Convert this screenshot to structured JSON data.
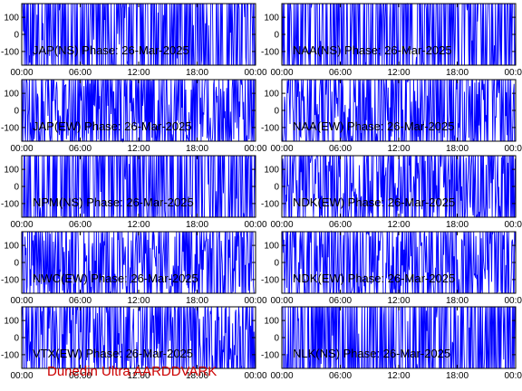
{
  "footer": "Dunedin Ultra AARDDVARK",
  "colors": {
    "trace": "#0000ff",
    "axis": "#000000",
    "footer": "#cc0000",
    "background": "#ffffff"
  },
  "chart_data": [
    {
      "type": "line",
      "title": "JAP(NS) Phase: 26-Mar-2025",
      "xlim": [
        "00:00",
        "24:00"
      ],
      "x_ticks": [
        "00:00",
        "06:00",
        "12:00",
        "18:00",
        "00:00"
      ],
      "ylim": [
        -180,
        180
      ],
      "y_ticks": [
        100,
        0,
        -100
      ],
      "series": [
        {
          "values_range": [
            -180,
            180
          ],
          "density": 0.92
        }
      ]
    },
    {
      "type": "line",
      "title": "NAA(NS) Phase: 26-Mar-2025",
      "xlim": [
        "00:00",
        "24:00"
      ],
      "x_ticks": [
        "00:00",
        "06:00",
        "12:00",
        "18:00",
        "00:00"
      ],
      "ylim": [
        -180,
        180
      ],
      "y_ticks": [
        100,
        0,
        -100
      ],
      "series": [
        {
          "values_range": [
            -180,
            180
          ],
          "density": 0.92
        }
      ]
    },
    {
      "type": "line",
      "title": "JAP(EW) Phase: 26-Mar-2025",
      "xlim": [
        "00:00",
        "24:00"
      ],
      "x_ticks": [
        "00:00",
        "06:00",
        "12:00",
        "18:00",
        "00:00"
      ],
      "ylim": [
        -180,
        180
      ],
      "y_ticks": [
        100,
        0,
        -100
      ],
      "series": [
        {
          "values_range": [
            -180,
            180
          ],
          "density": 0.6
        }
      ]
    },
    {
      "type": "line",
      "title": "NAA(EW) Phase: 26-Mar-2025",
      "xlim": [
        "00:00",
        "24:00"
      ],
      "x_ticks": [
        "00:00",
        "06:00",
        "12:00",
        "18:00",
        "00:00"
      ],
      "ylim": [
        -180,
        180
      ],
      "y_ticks": [
        100,
        0,
        -100
      ],
      "series": [
        {
          "values_range": [
            -180,
            180
          ],
          "density": 0.6
        }
      ]
    },
    {
      "type": "line",
      "title": "NPM(NS) Phase: 26-Mar-2025",
      "xlim": [
        "00:00",
        "24:00"
      ],
      "x_ticks": [
        "00:00",
        "06:00",
        "12:00",
        "18:00",
        "00:00"
      ],
      "ylim": [
        -180,
        180
      ],
      "y_ticks": [
        100,
        0,
        -100
      ],
      "series": [
        {
          "values_range": [
            -180,
            180
          ],
          "density": 0.92
        }
      ]
    },
    {
      "type": "line",
      "title": "NDK(EW) Phase: 26-Mar-2025",
      "xlim": [
        "00:00",
        "24:00"
      ],
      "x_ticks": [
        "00:00",
        "06:00",
        "12:00",
        "18:00",
        "00:00"
      ],
      "ylim": [
        -180,
        180
      ],
      "y_ticks": [
        100,
        0,
        -100
      ],
      "series": [
        {
          "values_range": [
            -180,
            180
          ],
          "density": 0.6
        }
      ]
    },
    {
      "type": "line",
      "title": "NWC(EW) Phase: 26-Mar-2025",
      "xlim": [
        "00:00",
        "24:00"
      ],
      "x_ticks": [
        "00:00",
        "06:00",
        "12:00",
        "18:00",
        "00:00"
      ],
      "ylim": [
        -180,
        180
      ],
      "y_ticks": [
        100,
        0,
        -100
      ],
      "series": [
        {
          "values_range": [
            -180,
            180
          ],
          "density": 0.6
        }
      ]
    },
    {
      "type": "line",
      "title": "NDK(EW) Phase: 26-Mar-2025",
      "xlim": [
        "00:00",
        "24:00"
      ],
      "x_ticks": [
        "00:00",
        "06:00",
        "12:00",
        "18:00",
        "00:00"
      ],
      "ylim": [
        -180,
        180
      ],
      "y_ticks": [
        100,
        0,
        -100
      ],
      "series": [
        {
          "values_range": [
            -180,
            180
          ],
          "density": 0.6
        }
      ]
    },
    {
      "type": "line",
      "title": "VTX(EW) Phase: 26-Mar-2025",
      "xlim": [
        "00:00",
        "24:00"
      ],
      "x_ticks": [
        "00:00",
        "06:00",
        "12:00",
        "18:00",
        "00:00"
      ],
      "ylim": [
        -180,
        180
      ],
      "y_ticks": [
        100,
        0,
        -100
      ],
      "series": [
        {
          "values_range": [
            -180,
            180
          ],
          "density": 0.6
        }
      ]
    },
    {
      "type": "line",
      "title": "NLK(NS) Phase: 26-Mar-2025",
      "xlim": [
        "00:00",
        "24:00"
      ],
      "x_ticks": [
        "00:00",
        "06:00",
        "12:00",
        "18:00",
        "00:00"
      ],
      "ylim": [
        -180,
        180
      ],
      "y_ticks": [
        100,
        0,
        -100
      ],
      "series": [
        {
          "values_range": [
            -180,
            180
          ],
          "density": 0.92
        }
      ]
    }
  ]
}
